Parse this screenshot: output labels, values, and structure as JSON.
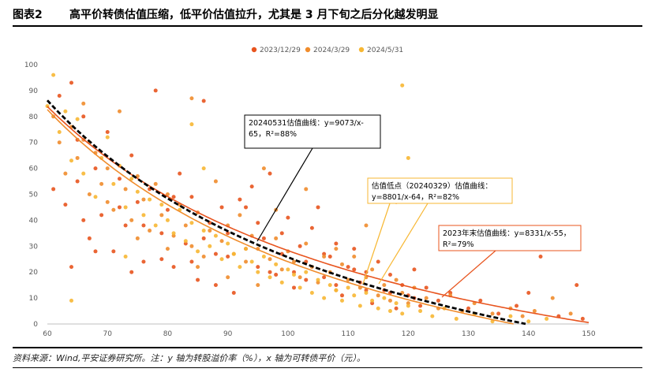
{
  "header": {
    "figure_number": "图表2",
    "title": "高平价转债估值压缩，低平价估值拉升，尤其是 3 月下旬之后分化越发明显"
  },
  "source": "资料来源：Wind,平安证券研究所。注：y 轴为转股溢价率（%），x 轴为可转债平价（元）。",
  "colors": {
    "s2023": "#e8541e",
    "s2024a": "#f08c2c",
    "s2024b": "#f7b733",
    "fit": "#000000"
  },
  "chart_data": {
    "type": "scatter",
    "title": "",
    "xlabel": "",
    "ylabel": "",
    "xlim": [
      60,
      150
    ],
    "ylim": [
      0,
      100
    ],
    "xticks": [
      "60",
      "70",
      "80",
      "90",
      "100",
      "110",
      "120",
      "130",
      "140",
      "150"
    ],
    "yticks": [
      "0",
      "10",
      "20",
      "30",
      "40",
      "50",
      "60",
      "70",
      "80",
      "90",
      "100"
    ],
    "legend": [
      "2023/12/29",
      "2024/3/29",
      "2024/5/31"
    ],
    "series": [
      {
        "name": "2023/12/29",
        "curve": {
          "a": 8331,
          "b": 55
        },
        "points": [
          [
            61,
            52
          ],
          [
            62,
            88
          ],
          [
            63,
            46
          ],
          [
            64,
            93
          ],
          [
            65,
            55
          ],
          [
            65,
            71
          ],
          [
            66,
            80
          ],
          [
            67,
            33
          ],
          [
            68,
            60
          ],
          [
            69,
            42
          ],
          [
            70,
            74
          ],
          [
            71,
            28
          ],
          [
            72,
            56
          ],
          [
            73,
            38
          ],
          [
            74,
            65
          ],
          [
            75,
            47
          ],
          [
            76,
            24
          ],
          [
            77,
            52
          ],
          [
            78,
            90
          ],
          [
            79,
            35
          ],
          [
            80,
            44
          ],
          [
            81,
            22
          ],
          [
            82,
            58
          ],
          [
            83,
            31
          ],
          [
            84,
            49
          ],
          [
            85,
            17
          ],
          [
            86,
            86
          ],
          [
            87,
            39
          ],
          [
            88,
            27
          ],
          [
            89,
            45
          ],
          [
            90,
            35
          ],
          [
            91,
            12
          ],
          [
            92,
            48
          ],
          [
            93,
            29
          ],
          [
            94,
            53
          ],
          [
            95,
            22
          ],
          [
            96,
            33
          ],
          [
            97,
            58
          ],
          [
            98,
            19
          ],
          [
            99,
            27
          ],
          [
            100,
            41
          ],
          [
            101,
            14
          ],
          [
            102,
            30
          ],
          [
            103,
            24
          ],
          [
            104,
            37
          ],
          [
            105,
            45
          ],
          [
            106,
            18
          ],
          [
            107,
            26
          ],
          [
            108,
            31
          ],
          [
            109,
            11
          ],
          [
            110,
            22
          ],
          [
            111,
            29
          ],
          [
            112,
            16
          ],
          [
            113,
            20
          ],
          [
            114,
            8
          ],
          [
            115,
            24
          ],
          [
            116,
            13
          ],
          [
            117,
            19
          ],
          [
            118,
            6
          ],
          [
            119,
            15
          ],
          [
            120,
            11
          ],
          [
            121,
            21
          ],
          [
            122,
            7
          ],
          [
            123,
            14
          ],
          [
            125,
            9
          ],
          [
            127,
            12
          ],
          [
            130,
            6
          ],
          [
            132,
            9
          ],
          [
            135,
            4
          ],
          [
            138,
            7
          ],
          [
            140,
            12
          ],
          [
            142,
            26
          ],
          [
            145,
            3
          ],
          [
            148,
            15
          ],
          [
            149,
            2
          ],
          [
            64,
            22
          ],
          [
            66,
            40
          ],
          [
            68,
            28
          ],
          [
            72,
            45
          ],
          [
            74,
            20
          ],
          [
            76,
            38
          ],
          [
            79,
            25
          ],
          [
            81,
            49
          ],
          [
            84,
            24
          ],
          [
            86,
            33
          ],
          [
            88,
            15
          ],
          [
            90,
            26
          ],
          [
            93,
            45
          ],
          [
            95,
            39
          ],
          [
            97,
            20
          ],
          [
            99,
            35
          ],
          [
            101,
            20
          ],
          [
            103,
            17
          ],
          [
            106,
            27
          ],
          [
            108,
            15
          ],
          [
            111,
            21
          ],
          [
            113,
            13
          ],
          [
            117,
            12
          ],
          [
            121,
            10
          ]
        ]
      },
      {
        "name": "2024/3/29",
        "curve": {
          "a": 8801,
          "b": 64
        },
        "points": [
          [
            61,
            80
          ],
          [
            62,
            70
          ],
          [
            63,
            58
          ],
          [
            64,
            76
          ],
          [
            65,
            64
          ],
          [
            66,
            85
          ],
          [
            67,
            50
          ],
          [
            68,
            66
          ],
          [
            69,
            54
          ],
          [
            70,
            60
          ],
          [
            71,
            44
          ],
          [
            72,
            82
          ],
          [
            73,
            52
          ],
          [
            74,
            40
          ],
          [
            75,
            57
          ],
          [
            76,
            48
          ],
          [
            77,
            36
          ],
          [
            78,
            54
          ],
          [
            79,
            42
          ],
          [
            80,
            50
          ],
          [
            81,
            34
          ],
          [
            82,
            46
          ],
          [
            83,
            38
          ],
          [
            84,
            30
          ],
          [
            85,
            43
          ],
          [
            86,
            26
          ],
          [
            87,
            36
          ],
          [
            88,
            55
          ],
          [
            89,
            32
          ],
          [
            90,
            38
          ],
          [
            91,
            27
          ],
          [
            92,
            42
          ],
          [
            93,
            24
          ],
          [
            94,
            34
          ],
          [
            95,
            29
          ],
          [
            96,
            60
          ],
          [
            97,
            25
          ],
          [
            98,
            33
          ],
          [
            99,
            21
          ],
          [
            100,
            28
          ],
          [
            101,
            24
          ],
          [
            102,
            18
          ],
          [
            103,
            31
          ],
          [
            104,
            22
          ],
          [
            105,
            16
          ],
          [
            106,
            26
          ],
          [
            107,
            20
          ],
          [
            108,
            13
          ],
          [
            109,
            23
          ],
          [
            110,
            17
          ],
          [
            111,
            26
          ],
          [
            112,
            14
          ],
          [
            113,
            18
          ],
          [
            114,
            21
          ],
          [
            115,
            11
          ],
          [
            116,
            15
          ],
          [
            117,
            9
          ],
          [
            118,
            17
          ],
          [
            119,
            12
          ],
          [
            120,
            8
          ],
          [
            121,
            14
          ],
          [
            123,
            10
          ],
          [
            125,
            6
          ],
          [
            127,
            11
          ],
          [
            129,
            5
          ],
          [
            131,
            8
          ],
          [
            134,
            4
          ],
          [
            137,
            6
          ],
          [
            139,
            3
          ],
          [
            141,
            5
          ],
          [
            144,
            10
          ],
          [
            147,
            4
          ],
          [
            84,
            87
          ],
          [
            108,
            29
          ],
          [
            113,
            38
          ],
          [
            118,
            47
          ],
          [
            98,
            44
          ],
          [
            103,
            52
          ],
          [
            66,
            71
          ],
          [
            70,
            47
          ],
          [
            75,
            33
          ],
          [
            80,
            29
          ],
          [
            85,
            22
          ],
          [
            90,
            18
          ],
          [
            95,
            15
          ]
        ]
      },
      {
        "name": "2024/5/31",
        "curve": {
          "a": 9073,
          "b": 65
        },
        "points": [
          [
            60,
            84
          ],
          [
            61,
            96
          ],
          [
            62,
            74
          ],
          [
            63,
            82
          ],
          [
            64,
            63
          ],
          [
            65,
            79
          ],
          [
            66,
            58
          ],
          [
            67,
            70
          ],
          [
            68,
            49
          ],
          [
            69,
            64
          ],
          [
            70,
            72
          ],
          [
            71,
            54
          ],
          [
            72,
            61
          ],
          [
            73,
            45
          ],
          [
            74,
            56
          ],
          [
            75,
            51
          ],
          [
            76,
            42
          ],
          [
            77,
            48
          ],
          [
            78,
            38
          ],
          [
            79,
            46
          ],
          [
            80,
            40
          ],
          [
            81,
            35
          ],
          [
            82,
            44
          ],
          [
            83,
            32
          ],
          [
            84,
            39
          ],
          [
            85,
            28
          ],
          [
            86,
            36
          ],
          [
            87,
            30
          ],
          [
            88,
            34
          ],
          [
            89,
            25
          ],
          [
            90,
            31
          ],
          [
            91,
            27
          ],
          [
            92,
            22
          ],
          [
            93,
            29
          ],
          [
            94,
            24
          ],
          [
            95,
            20
          ],
          [
            96,
            26
          ],
          [
            97,
            18
          ],
          [
            98,
            23
          ],
          [
            99,
            16
          ],
          [
            100,
            21
          ],
          [
            101,
            19
          ],
          [
            102,
            14
          ],
          [
            103,
            20
          ],
          [
            104,
            12
          ],
          [
            105,
            17
          ],
          [
            106,
            10
          ],
          [
            107,
            15
          ],
          [
            108,
            13
          ],
          [
            109,
            9
          ],
          [
            110,
            14
          ],
          [
            111,
            11
          ],
          [
            112,
            7
          ],
          [
            113,
            12
          ],
          [
            114,
            9
          ],
          [
            115,
            6
          ],
          [
            116,
            10
          ],
          [
            117,
            5
          ],
          [
            118,
            8
          ],
          [
            119,
            4
          ],
          [
            120,
            7
          ],
          [
            122,
            5
          ],
          [
            124,
            3
          ],
          [
            126,
            6
          ],
          [
            128,
            2
          ],
          [
            131,
            4
          ],
          [
            134,
            1
          ],
          [
            137,
            3
          ],
          [
            140,
            1
          ],
          [
            143,
            2
          ],
          [
            119,
            92
          ],
          [
            120,
            64
          ],
          [
            84,
            77
          ],
          [
            86,
            60
          ],
          [
            64,
            9
          ],
          [
            73,
            26
          ]
        ]
      }
    ],
    "annotations": [
      {
        "id": "ann2024b",
        "series": "2024/5/31",
        "text_lines": [
          "20240531估值曲线：y=9073/x-",
          "65，R²=88%"
        ]
      },
      {
        "id": "ann2024a",
        "series": "2024/3/29",
        "text_lines": [
          "估值低点（20240329）估值曲线：",
          "y=8801/x-64，R²=82%"
        ]
      },
      {
        "id": "ann2023",
        "series": "2023/12/29",
        "text_lines": [
          "2023年末估值曲线：y=8331/x-55，",
          "R²=79%"
        ]
      }
    ]
  }
}
